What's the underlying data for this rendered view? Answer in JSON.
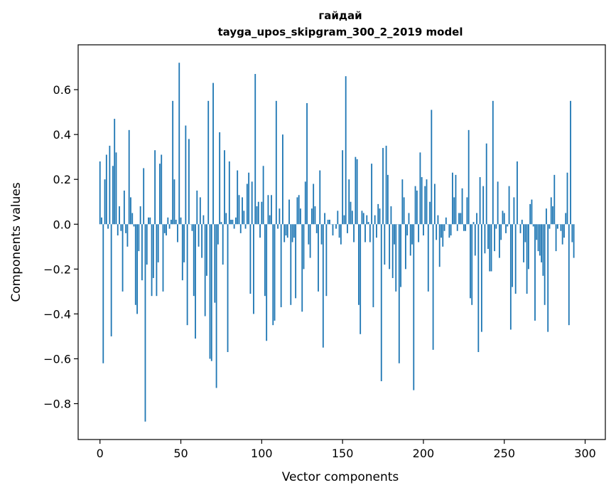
{
  "chart_data": {
    "type": "bar",
    "title_line1": "гайдай",
    "title_line2": "tayga_upos_skipgram_300_2_2019 model",
    "xlabel": "Vector components",
    "ylabel": "Components values",
    "xlim": [
      -13.5,
      312.5
    ],
    "ylim": [
      -0.96,
      0.8
    ],
    "xticks": [
      0,
      50,
      100,
      150,
      200,
      250,
      300
    ],
    "xtick_labels": [
      "0",
      "50",
      "100",
      "150",
      "200",
      "250",
      "300"
    ],
    "yticks": [
      -0.8,
      -0.6,
      -0.4,
      -0.2,
      0.0,
      0.2,
      0.4,
      0.6
    ],
    "ytick_labels": [
      "−0.8",
      "−0.6",
      "−0.4",
      "−0.2",
      "0.0",
      "0.2",
      "0.4",
      "0.6"
    ],
    "bar_color": "#1f77b4",
    "values": [
      0.28,
      0.03,
      -0.62,
      0.2,
      0.31,
      -0.02,
      0.35,
      -0.5,
      0.26,
      0.47,
      0.32,
      -0.05,
      0.08,
      -0.03,
      -0.3,
      0.15,
      -0.04,
      -0.1,
      0.42,
      0.12,
      0.05,
      -0.01,
      -0.36,
      -0.4,
      -0.12,
      0.08,
      -0.25,
      0.25,
      -0.88,
      -0.18,
      0.03,
      0.03,
      -0.32,
      -0.24,
      0.33,
      -0.32,
      -0.17,
      0.27,
      0.31,
      -0.3,
      -0.04,
      -0.05,
      0.03,
      -0.02,
      0.02,
      0.55,
      0.2,
      0.02,
      -0.08,
      0.72,
      0.03,
      -0.25,
      -0.17,
      0.44,
      -0.45,
      0.38,
      0.0,
      -0.03,
      -0.32,
      -0.51,
      0.15,
      -0.1,
      0.12,
      -0.15,
      0.04,
      -0.41,
      -0.23,
      0.55,
      -0.6,
      -0.61,
      0.63,
      -0.35,
      -0.73,
      -0.09,
      0.41,
      0.01,
      -0.18,
      0.33,
      0.05,
      -0.57,
      0.28,
      0.02,
      0.02,
      -0.02,
      0.03,
      0.24,
      0.13,
      -0.04,
      0.12,
      0.06,
      -0.02,
      0.18,
      0.23,
      -0.31,
      0.19,
      -0.4,
      0.67,
      0.08,
      0.1,
      -0.06,
      0.1,
      0.26,
      -0.32,
      -0.52,
      0.13,
      0.04,
      0.13,
      -0.45,
      -0.43,
      0.55,
      -0.02,
      0.07,
      -0.37,
      0.4,
      -0.08,
      -0.05,
      -0.06,
      0.11,
      -0.36,
      -0.08,
      -0.06,
      -0.33,
      0.12,
      0.13,
      0.07,
      -0.39,
      -0.2,
      0.19,
      0.54,
      -0.09,
      -0.15,
      0.07,
      0.18,
      0.08,
      -0.04,
      -0.3,
      0.24,
      -0.09,
      -0.55,
      0.05,
      -0.32,
      0.02,
      0.02,
      0.0,
      -0.05,
      0.0,
      -0.02,
      0.06,
      -0.06,
      -0.09,
      0.33,
      0.04,
      0.66,
      -0.04,
      0.2,
      0.1,
      0.06,
      -0.08,
      0.3,
      0.29,
      -0.36,
      -0.49,
      0.06,
      0.05,
      -0.08,
      0.04,
      0.01,
      -0.08,
      0.27,
      -0.37,
      0.04,
      -0.06,
      0.09,
      0.07,
      -0.7,
      0.34,
      -0.18,
      0.35,
      0.22,
      -0.2,
      0.08,
      -0.24,
      -0.09,
      -0.3,
      0.0,
      -0.62,
      -0.28,
      0.2,
      0.12,
      -0.2,
      -0.05,
      0.05,
      -0.14,
      -0.09,
      -0.74,
      0.17,
      0.15,
      -0.08,
      0.32,
      0.21,
      -0.05,
      0.17,
      0.2,
      -0.3,
      0.1,
      0.51,
      -0.56,
      0.18,
      -0.07,
      0.04,
      -0.19,
      -0.06,
      -0.1,
      -0.03,
      0.03,
      0.0,
      -0.06,
      -0.05,
      0.23,
      0.12,
      0.22,
      -0.03,
      0.05,
      0.05,
      0.16,
      -0.03,
      -0.03,
      0.12,
      0.42,
      -0.33,
      -0.36,
      0.01,
      -0.14,
      0.05,
      -0.57,
      0.21,
      -0.48,
      0.17,
      -0.13,
      0.36,
      -0.11,
      -0.21,
      -0.21,
      0.55,
      -0.12,
      -0.02,
      0.19,
      -0.15,
      -0.07,
      0.06,
      0.05,
      -0.04,
      -0.01,
      0.17,
      -0.47,
      -0.28,
      0.12,
      -0.31,
      0.28,
      0.0,
      -0.04,
      0.02,
      -0.17,
      -0.08,
      -0.31,
      -0.2,
      0.09,
      0.11,
      -0.01,
      -0.43,
      -0.07,
      -0.12,
      -0.14,
      -0.17,
      -0.23,
      -0.36,
      0.07,
      -0.48,
      -0.02,
      0.12,
      0.08,
      0.22,
      -0.12,
      -0.02,
      0.0,
      -0.03,
      -0.09,
      -0.06,
      0.05,
      0.23,
      -0.45,
      0.55,
      -0.08,
      -0.15
    ]
  }
}
